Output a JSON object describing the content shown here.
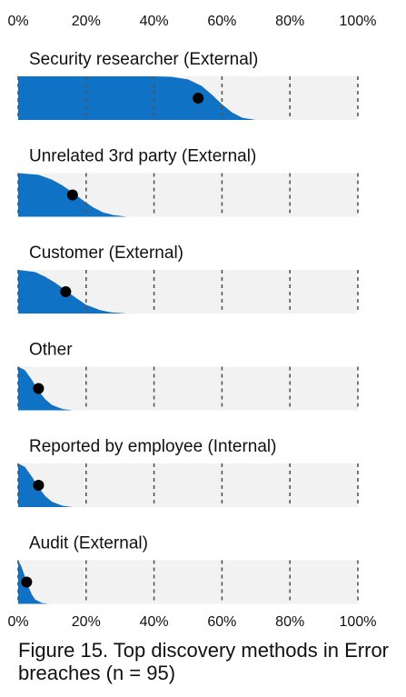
{
  "chart_data": {
    "type": "area",
    "subtype": "slab-interval",
    "title": "Figure 15. Top discovery methods in Error breaches (n = 95)",
    "x_ticks": [
      "0%",
      "20%",
      "40%",
      "60%",
      "80%",
      "100%"
    ],
    "xlim": [
      0,
      100
    ],
    "x_unit": "%",
    "grid": "dashed vertical lines",
    "colors": {
      "fill": "#0f72c5",
      "background": "#f2f2f2",
      "point": "#000000",
      "grid": "#555555"
    },
    "series": [
      {
        "label": "Security researcher (External)",
        "point": 53,
        "x": [
          0,
          40,
          45,
          50,
          54,
          57,
          60,
          63,
          66,
          70
        ],
        "density": [
          1,
          1,
          0.99,
          0.93,
          0.78,
          0.58,
          0.36,
          0.17,
          0.05,
          0
        ]
      },
      {
        "label": "Unrelated 3rd party (External)",
        "point": 16,
        "x": [
          0,
          6,
          10,
          13,
          16,
          19,
          22,
          25,
          28,
          32
        ],
        "density": [
          1,
          0.96,
          0.85,
          0.72,
          0.56,
          0.38,
          0.22,
          0.1,
          0.04,
          0
        ]
      },
      {
        "label": "Customer (External)",
        "point": 14,
        "x": [
          0,
          5,
          8,
          11,
          14,
          17,
          20,
          24,
          27,
          32
        ],
        "density": [
          1,
          0.95,
          0.84,
          0.7,
          0.53,
          0.36,
          0.2,
          0.08,
          0.03,
          0
        ]
      },
      {
        "label": "Other",
        "point": 6,
        "x": [
          0,
          2,
          4,
          6,
          8,
          10,
          13,
          16
        ],
        "density": [
          1,
          0.92,
          0.7,
          0.45,
          0.25,
          0.12,
          0.03,
          0
        ]
      },
      {
        "label": "Reported by employee (Internal)",
        "point": 6,
        "x": [
          0,
          2,
          4,
          6,
          8,
          10,
          13,
          16
        ],
        "density": [
          1,
          0.92,
          0.7,
          0.45,
          0.25,
          0.12,
          0.03,
          0
        ]
      },
      {
        "label": "Audit (External)",
        "point": 2.5,
        "x": [
          0,
          1,
          2,
          3,
          4,
          5,
          7,
          9
        ],
        "density": [
          1,
          0.85,
          0.62,
          0.4,
          0.22,
          0.1,
          0.02,
          0
        ]
      }
    ]
  }
}
